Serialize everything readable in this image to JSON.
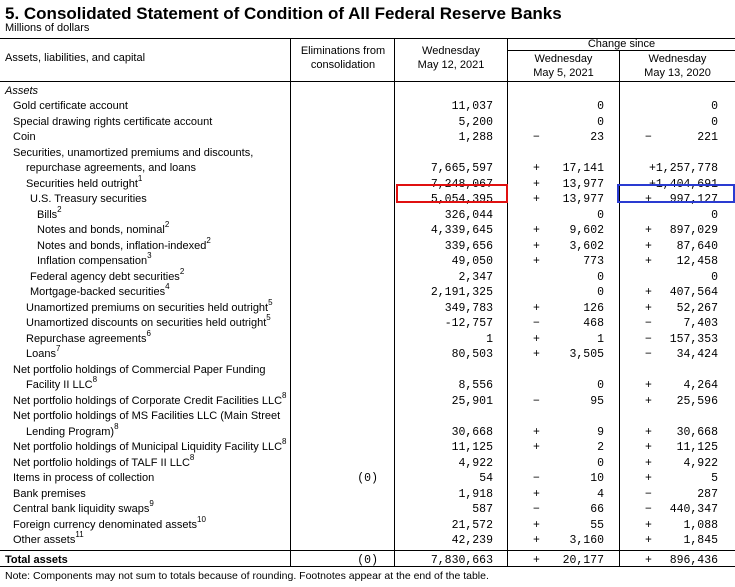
{
  "title": "5. Consolidated Statement of Condition of All Federal Reserve Banks",
  "subtitle": "Millions of dollars",
  "headers": {
    "label": "Assets, liabilities, and capital",
    "elim": "Eliminations from consolidation",
    "wed": "Wednesday",
    "wed_date": "May 12, 2021",
    "change_since": "Change since",
    "c1": "Wednesday",
    "c1_date": "May 5, 2021",
    "c2": "Wednesday",
    "c2_date": "May 13, 2020"
  },
  "section": "Assets",
  "rows": [
    {
      "label": "Gold certificate account",
      "sup": "",
      "indent": 1,
      "elim": "",
      "val": "11,037",
      "s1": "",
      "c1": "0",
      "s2": "",
      "c2": "0"
    },
    {
      "label": "Special drawing rights certificate account",
      "sup": "",
      "indent": 1,
      "elim": "",
      "val": "5,200",
      "s1": "",
      "c1": "0",
      "s2": "",
      "c2": "0"
    },
    {
      "label": "Coin",
      "sup": "",
      "indent": 1,
      "elim": "",
      "val": "1,288",
      "s1": "−",
      "c1": "23",
      "s2": "−",
      "c2": "221"
    },
    {
      "label": "Securities, unamortized premiums and discounts,",
      "sup": "",
      "indent": 1,
      "elim": "",
      "val": "",
      "s1": "",
      "c1": "",
      "s2": "",
      "c2": ""
    },
    {
      "label": "repurchase agreements, and loans",
      "sup": "",
      "indent": 2,
      "elim": "",
      "val": "7,665,597",
      "s1": "+",
      "c1": "17,141",
      "s2": "",
      "c2": "+1,257,778"
    },
    {
      "label": "Securities held outright",
      "sup": "1",
      "indent": 2,
      "elim": "",
      "val": "7,248,067",
      "s1": "+",
      "c1": "13,977",
      "s2": "",
      "c2": "+1,404,691"
    },
    {
      "label": "U.S. Treasury securities",
      "sup": "",
      "indent": 3,
      "elim": "",
      "val": "5,054,395",
      "s1": "+",
      "c1": "13,977",
      "s2": "+",
      "c2": "997,127"
    },
    {
      "label": "Bills",
      "sup": "2",
      "indent": 4,
      "elim": "",
      "val": "326,044",
      "s1": "",
      "c1": "0",
      "s2": "",
      "c2": "0"
    },
    {
      "label": "Notes and bonds, nominal",
      "sup": "2",
      "indent": 4,
      "elim": "",
      "val": "4,339,645",
      "s1": "+",
      "c1": "9,602",
      "s2": "+",
      "c2": "897,029"
    },
    {
      "label": "Notes and bonds, inflation-indexed",
      "sup": "2",
      "indent": 4,
      "elim": "",
      "val": "339,656",
      "s1": "+",
      "c1": "3,602",
      "s2": "+",
      "c2": "87,640"
    },
    {
      "label": "Inflation compensation",
      "sup": "3",
      "indent": 4,
      "elim": "",
      "val": "49,050",
      "s1": "+",
      "c1": "773",
      "s2": "+",
      "c2": "12,458"
    },
    {
      "label": "Federal agency debt securities",
      "sup": "2",
      "indent": 3,
      "elim": "",
      "val": "2,347",
      "s1": "",
      "c1": "0",
      "s2": "",
      "c2": "0"
    },
    {
      "label": "Mortgage-backed securities",
      "sup": "4",
      "indent": 3,
      "elim": "",
      "val": "2,191,325",
      "s1": "",
      "c1": "0",
      "s2": "+",
      "c2": "407,564"
    },
    {
      "label": "Unamortized premiums on securities held outright",
      "sup": "5",
      "indent": 2,
      "elim": "",
      "val": "349,783",
      "s1": "+",
      "c1": "126",
      "s2": "+",
      "c2": "52,267"
    },
    {
      "label": "Unamortized discounts on securities held outright",
      "sup": "5",
      "indent": 2,
      "elim": "",
      "val": "-12,757",
      "s1": "−",
      "c1": "468",
      "s2": "−",
      "c2": "7,403"
    },
    {
      "label": "Repurchase agreements",
      "sup": "6",
      "indent": 2,
      "elim": "",
      "val": "1",
      "s1": "+",
      "c1": "1",
      "s2": "−",
      "c2": "157,353"
    },
    {
      "label": "Loans",
      "sup": "7",
      "indent": 2,
      "elim": "",
      "val": "80,503",
      "s1": "+",
      "c1": "3,505",
      "s2": "−",
      "c2": "34,424"
    },
    {
      "label": "Net portfolio holdings of Commercial Paper Funding",
      "sup": "",
      "indent": 1,
      "elim": "",
      "val": "",
      "s1": "",
      "c1": "",
      "s2": "",
      "c2": ""
    },
    {
      "label": "Facility II LLC",
      "sup": "8",
      "indent": 2,
      "elim": "",
      "val": "8,556",
      "s1": "",
      "c1": "0",
      "s2": "+",
      "c2": "4,264"
    },
    {
      "label": "Net portfolio holdings of Corporate Credit Facilities LLC",
      "sup": "8",
      "indent": 1,
      "elim": "",
      "val": "25,901",
      "s1": "−",
      "c1": "95",
      "s2": "+",
      "c2": "25,596"
    },
    {
      "label": "Net portfolio holdings of MS Facilities LLC (Main Street",
      "sup": "",
      "indent": 1,
      "elim": "",
      "val": "",
      "s1": "",
      "c1": "",
      "s2": "",
      "c2": ""
    },
    {
      "label": "Lending Program)",
      "sup": "8",
      "indent": 2,
      "elim": "",
      "val": "30,668",
      "s1": "+",
      "c1": "9",
      "s2": "+",
      "c2": "30,668"
    },
    {
      "label": "Net portfolio holdings of Municipal Liquidity Facility LLC",
      "sup": "8",
      "indent": 1,
      "elim": "",
      "val": "11,125",
      "s1": "+",
      "c1": "2",
      "s2": "+",
      "c2": "11,125"
    },
    {
      "label": "Net portfolio holdings of TALF II LLC",
      "sup": "8",
      "indent": 1,
      "elim": "",
      "val": "4,922",
      "s1": "",
      "c1": "0",
      "s2": "+",
      "c2": "4,922"
    },
    {
      "label": "Items in process of collection",
      "sup": "",
      "indent": 1,
      "elim": "(0)",
      "val": "54",
      "s1": "−",
      "c1": "10",
      "s2": "+",
      "c2": "5"
    },
    {
      "label": "Bank premises",
      "sup": "",
      "indent": 1,
      "elim": "",
      "val": "1,918",
      "s1": "+",
      "c1": "4",
      "s2": "−",
      "c2": "287"
    },
    {
      "label": "Central bank liquidity swaps",
      "sup": "9",
      "indent": 1,
      "elim": "",
      "val": "587",
      "s1": "−",
      "c1": "66",
      "s2": "−",
      "c2": "440,347"
    },
    {
      "label": "Foreign currency denominated assets",
      "sup": "10",
      "indent": 1,
      "elim": "",
      "val": "21,572",
      "s1": "+",
      "c1": "55",
      "s2": "+",
      "c2": "1,088"
    },
    {
      "label": "Other assets",
      "sup": "11",
      "indent": 1,
      "elim": "",
      "val": "42,239",
      "s1": "+",
      "c1": "3,160",
      "s2": "+",
      "c2": "1,845"
    }
  ],
  "total": {
    "label": "Total assets",
    "elim": "(0)",
    "val": "7,830,663",
    "s1": "+",
    "c1": "20,177",
    "s2": "+",
    "c2": "896,436"
  },
  "footnote": "Note: Components may not sum to totals because of rounding. Footnotes appear at the end of the table.",
  "highlight_colors": {
    "red": "#e01010",
    "blue": "#2a3bd1"
  }
}
